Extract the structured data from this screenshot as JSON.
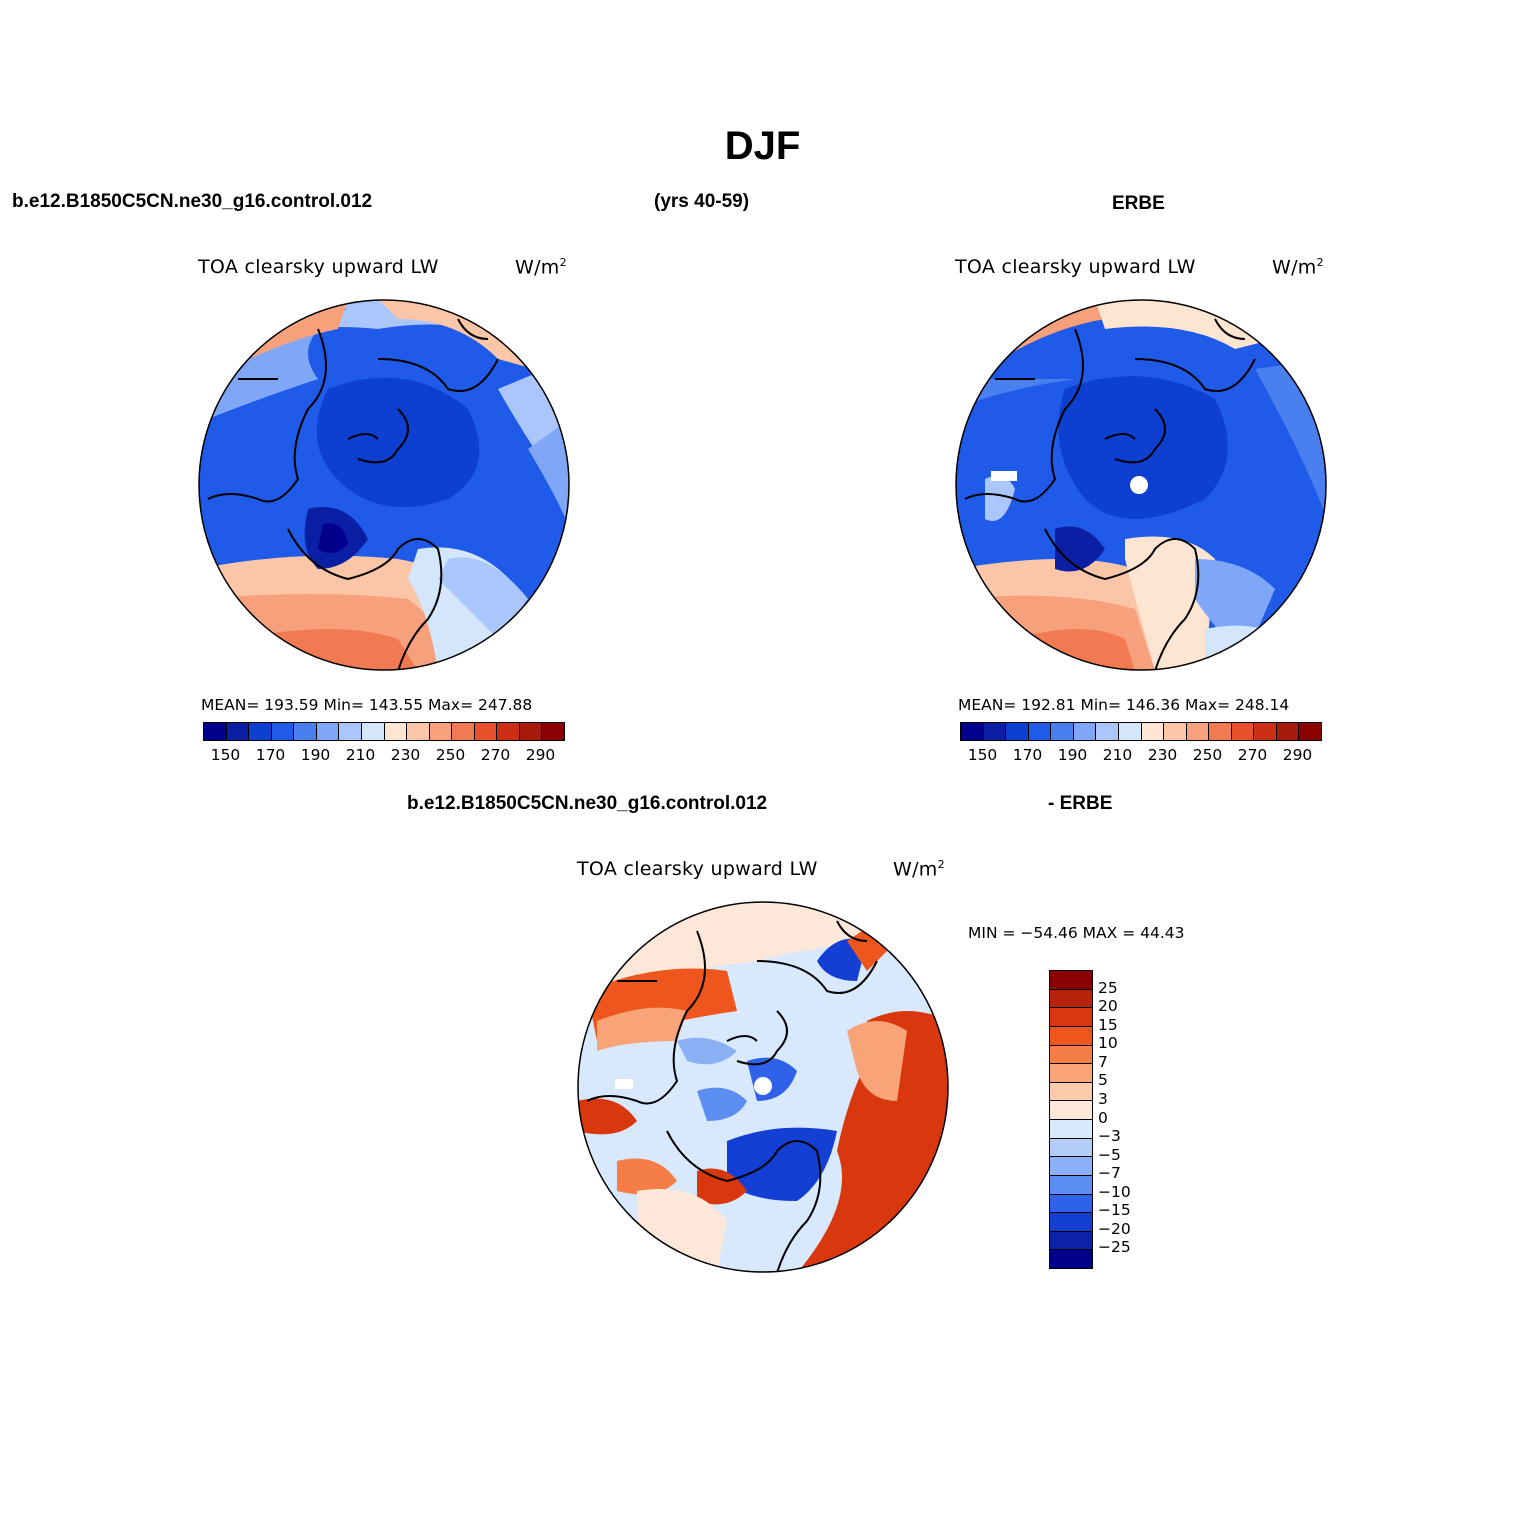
{
  "title": "DJF",
  "header": {
    "case_name": "b.e12.B1850C5CN.ne30_g16.control.012",
    "years": "(yrs 40-59)",
    "obs_name": "ERBE",
    "diff_case_name": "b.e12.B1850C5CN.ne30_g16.control.012",
    "diff_obs_name": "- ERBE"
  },
  "panels": [
    {
      "id": "model",
      "title": "TOA clearsky upward LW",
      "units_base": "W/m",
      "units_exp": "2",
      "stats": "MEAN= 193.59   Min= 143.55   Max= 247.88"
    },
    {
      "id": "obs",
      "title": "TOA clearsky upward LW",
      "units_base": "W/m",
      "units_exp": "2",
      "stats": "MEAN= 192.81   Min= 146.36   Max= 248.14"
    },
    {
      "id": "diff",
      "title": "TOA clearsky upward LW",
      "units_base": "W/m",
      "units_exp": "2",
      "stats": "MIN = −54.46  MAX =   44.43"
    }
  ],
  "colorbar_abs": {
    "colors": [
      "#00008b",
      "#0a1fa3",
      "#0d3fd0",
      "#1f5ae8",
      "#4a7ff0",
      "#7fa6f7",
      "#aac6fa",
      "#d4e6fc",
      "#fde5d2",
      "#fbc5a8",
      "#f7a07c",
      "#f27a52",
      "#e8512c",
      "#cc2f14",
      "#a81a0a",
      "#8b0000"
    ],
    "labels": [
      "150",
      "170",
      "190",
      "210",
      "230",
      "250",
      "270",
      "290"
    ]
  },
  "colorbar_diff": {
    "colors": [
      "#8b0000",
      "#b8230c",
      "#d9380e",
      "#ee561e",
      "#f57d46",
      "#f8a478",
      "#fccbab",
      "#fde7d8",
      "#d8e8fd",
      "#b3cdfb",
      "#8cb0f6",
      "#5c8df0",
      "#2f62e8",
      "#143fd4",
      "#0a22a8",
      "#00008b"
    ],
    "labels": [
      "25",
      "20",
      "15",
      "10",
      "7",
      "5",
      "3",
      "0",
      "−3",
      "−5",
      "−7",
      "−10",
      "−15",
      "−20",
      "−25"
    ]
  }
}
